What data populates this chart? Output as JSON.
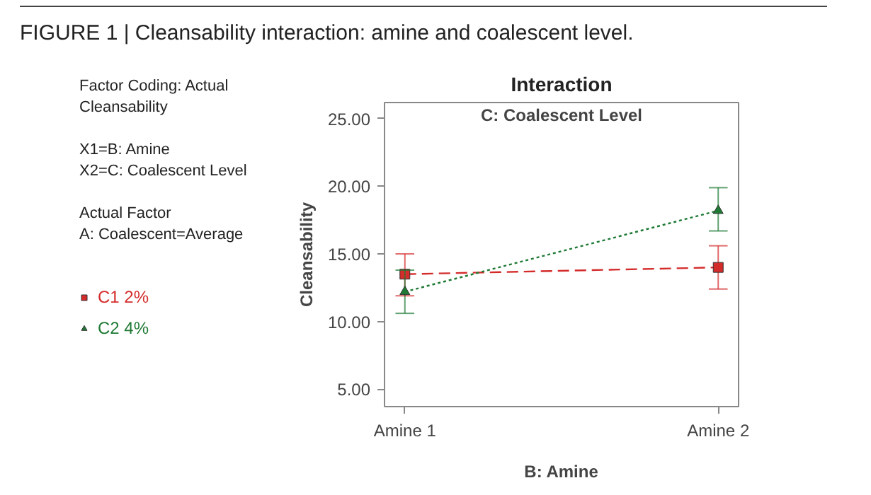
{
  "chart_data": {
    "type": "line",
    "title": "Interaction",
    "subtitle": "C: Coalescent Level",
    "xlabel": "B: Amine",
    "ylabel": "Cleansability",
    "annotations": [
      "FIGURE 1 | Cleansability interaction: amine and coalescent level.",
      "Factor Coding: Actual",
      "Cleansability",
      "X1=B: Amine",
      "X2=C: Coalescent Level",
      "Actual Factor",
      "A: Coalescent=Average"
    ],
    "categories": [
      "Amine 1",
      "Amine 2"
    ],
    "series": [
      {
        "name": "C1 2%",
        "color": "#d42b2b",
        "values": [
          13.5,
          14.0
        ],
        "errors": [
          [
            11.9,
            15.0
          ],
          [
            12.4,
            15.6
          ]
        ],
        "marker": "square",
        "line_style": "dashed"
      },
      {
        "name": "C2 4%",
        "color": "#1f7a35",
        "values": [
          12.2,
          18.2
        ],
        "errors": [
          [
            10.6,
            13.8
          ],
          [
            16.7,
            19.9
          ]
        ],
        "marker": "triangle",
        "line_style": "dotted"
      }
    ],
    "ylim": [
      3.7,
      26.2
    ],
    "yticks": [
      {
        "value": 5,
        "label": "5.00"
      },
      {
        "value": 10,
        "label": "10.00"
      },
      {
        "value": 15,
        "label": "15.00"
      },
      {
        "value": 20,
        "label": "20.00"
      },
      {
        "value": 25,
        "label": "25.00"
      }
    ],
    "grid": false,
    "legend": "left"
  }
}
